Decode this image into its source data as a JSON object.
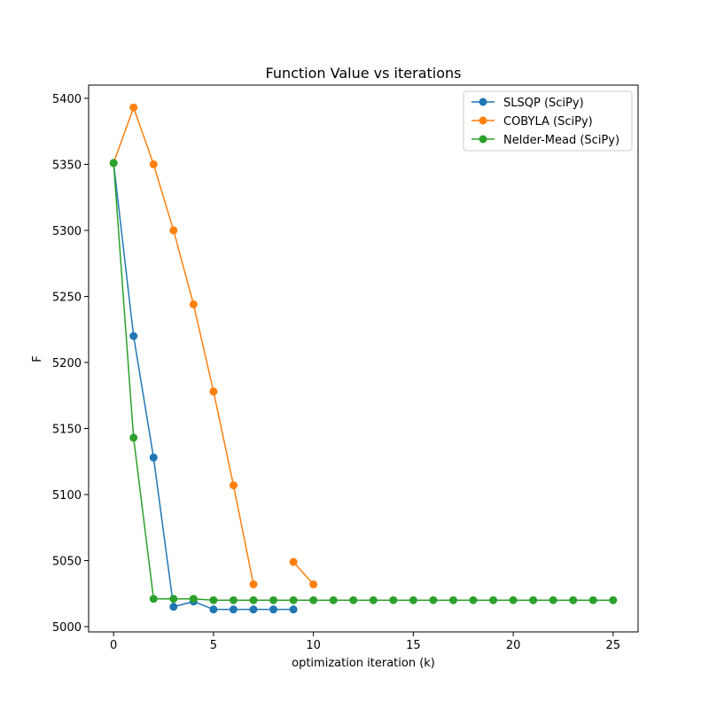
{
  "chart_data": {
    "type": "line",
    "title": "Function Value vs iterations",
    "xlabel": "optimization iteration (k)",
    "ylabel": "F",
    "xlim": [
      -1.25,
      26.25
    ],
    "ylim": [
      4996,
      5410
    ],
    "xticks": [
      0,
      5,
      10,
      15,
      20,
      25
    ],
    "yticks": [
      5000,
      5050,
      5100,
      5150,
      5200,
      5250,
      5300,
      5350,
      5400
    ],
    "grid": false,
    "legend_position": "top-right",
    "series": [
      {
        "name": "SLSQP (SciPy)",
        "color": "#1f77b4",
        "x": [
          0,
          1,
          2,
          3,
          4,
          5,
          6,
          7,
          8,
          9
        ],
        "y": [
          5351,
          5220,
          5128,
          5015,
          5019,
          5013,
          5013,
          5013,
          5013,
          5013
        ]
      },
      {
        "name": "COBYLA (SciPy)",
        "color": "#ff7f0e",
        "x": [
          0,
          1,
          2,
          3,
          4,
          5,
          6,
          7,
          8,
          9,
          10
        ],
        "y": [
          5351,
          5393,
          5350,
          5300,
          5244,
          5178,
          5107,
          5032,
          null,
          5049,
          5032
        ]
      },
      {
        "name": "Nelder-Mead (SciPy)",
        "color": "#2ca02c",
        "x": [
          0,
          1,
          2,
          3,
          4,
          5,
          6,
          7,
          8,
          9,
          10,
          11,
          12,
          13,
          14,
          15,
          16,
          17,
          18,
          19,
          20,
          21,
          22,
          23,
          24,
          25
        ],
        "y": [
          5351,
          5143,
          5021,
          5021,
          5021,
          5020,
          5020,
          5020,
          5020,
          5020,
          5020,
          5020,
          5020,
          5020,
          5020,
          5020,
          5020,
          5020,
          5020,
          5020,
          5020,
          5020,
          5020,
          5020,
          5020,
          5020
        ]
      }
    ]
  }
}
